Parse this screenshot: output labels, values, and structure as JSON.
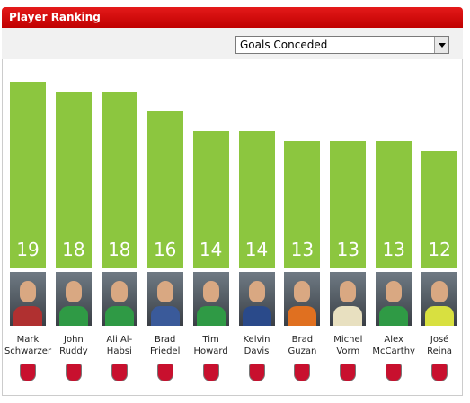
{
  "header": {
    "title": "Player Ranking"
  },
  "dropdown": {
    "selected": "Goals Conceded"
  },
  "chart_data": {
    "type": "bar",
    "categories": [
      "Mark\nSchwarzer",
      "John\nRuddy",
      "Ali Al-\nHabsi",
      "Brad\nFriedel",
      "Tim\nHoward",
      "Kelvin\nDavis",
      "Brad\nGuzan",
      "Michel\nVorm",
      "Alex\nMcCarthy",
      "José\nReina"
    ],
    "values": [
      19,
      18,
      18,
      16,
      14,
      14,
      13,
      13,
      13,
      12
    ],
    "color": "#8cc63f"
  }
}
